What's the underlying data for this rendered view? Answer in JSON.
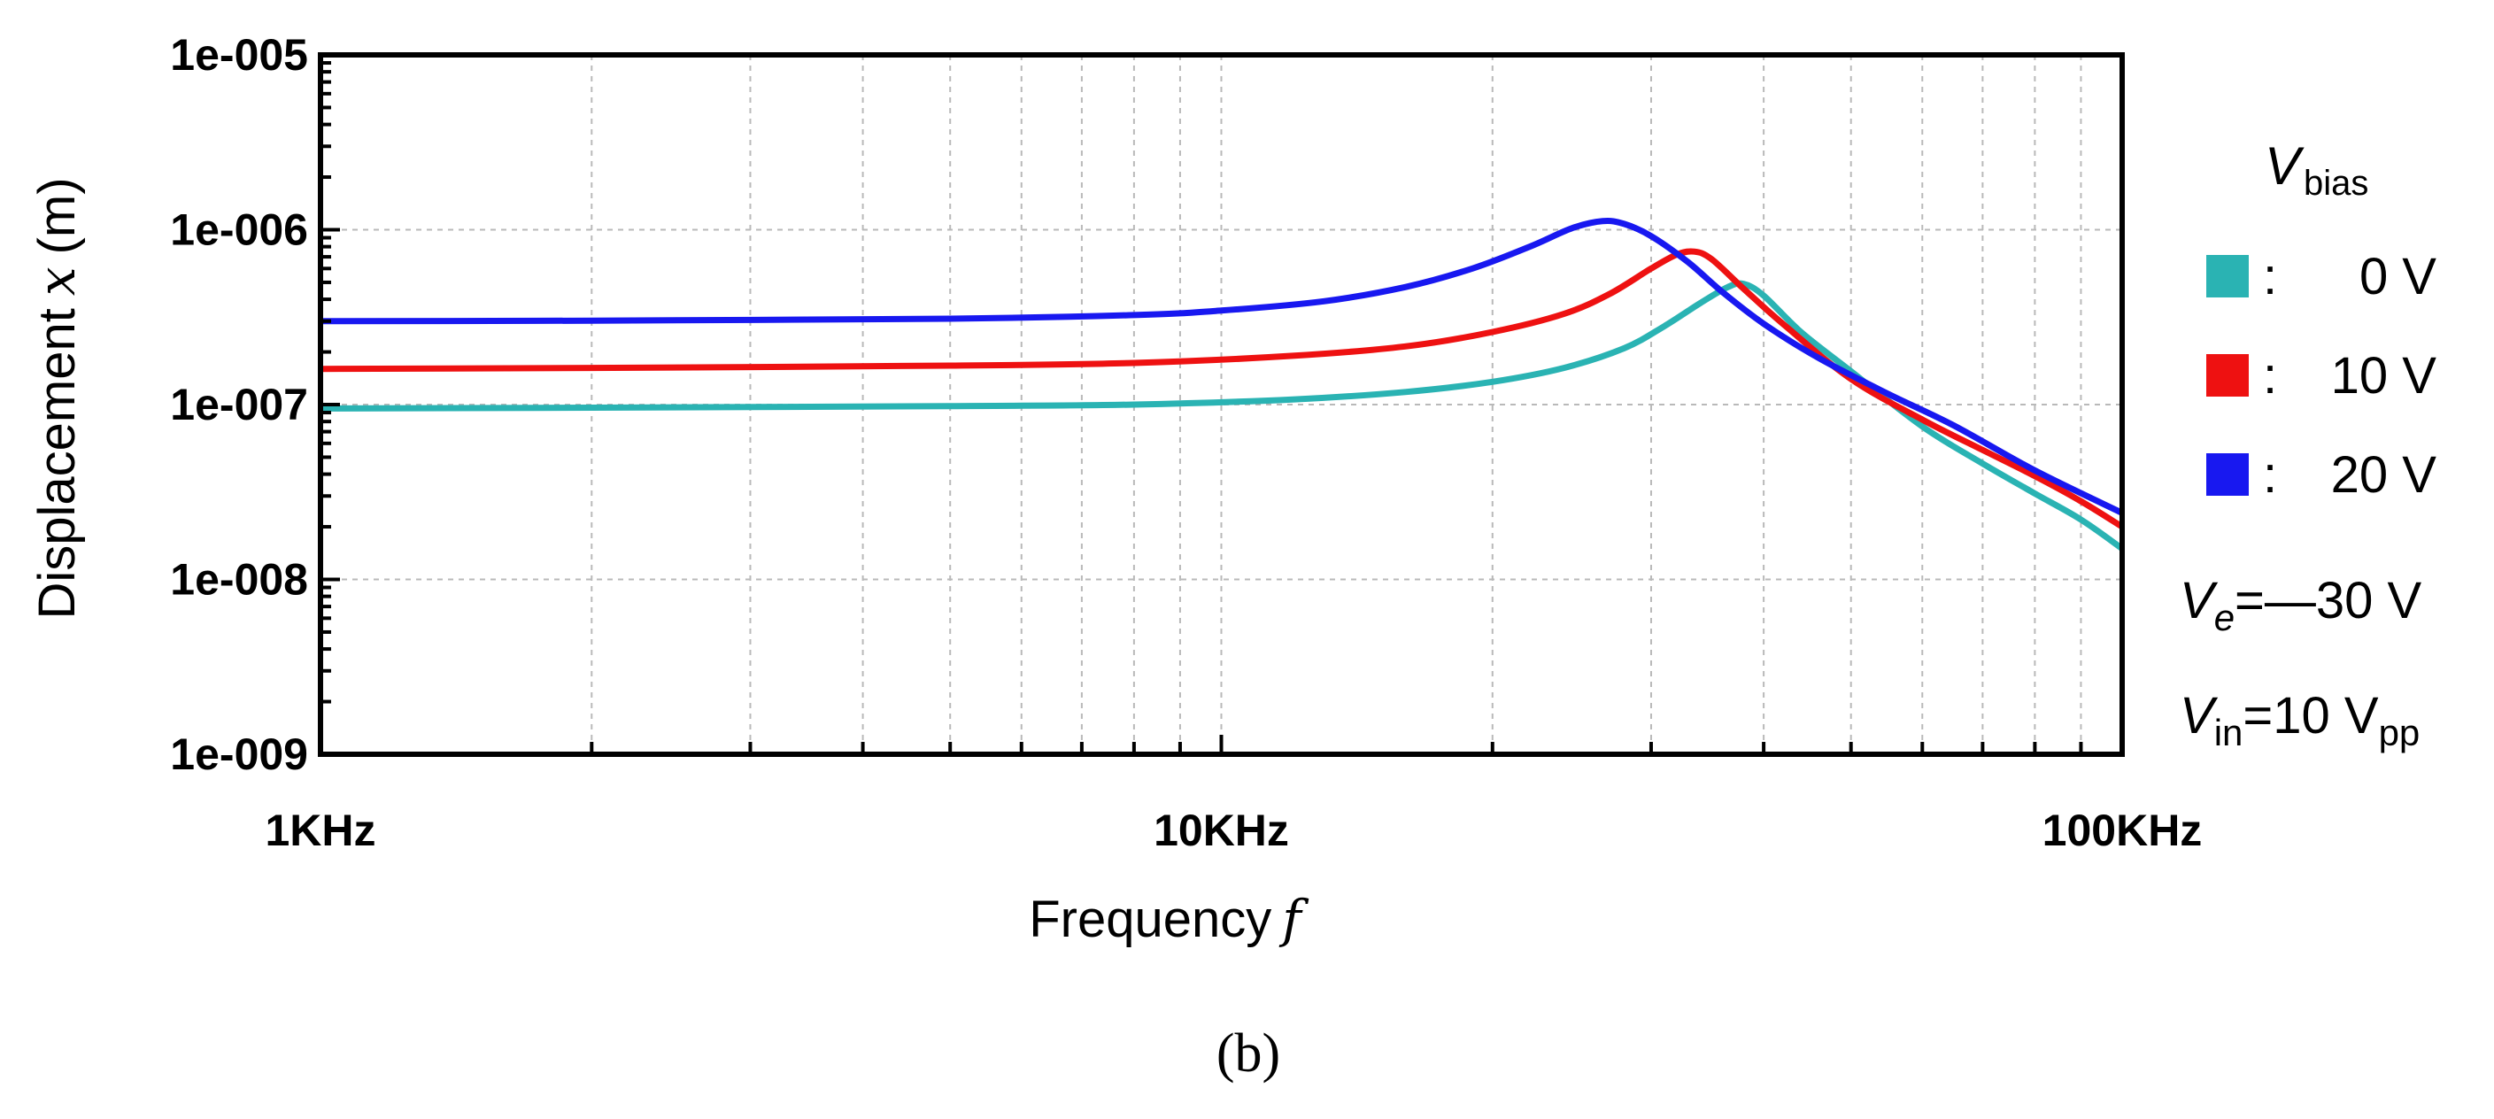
{
  "chart_data": {
    "type": "line",
    "title": "",
    "xlabel": "Frequency",
    "xlabel_var": "f",
    "ylabel": "Displacement",
    "ylabel_var": "x",
    "ylabel_unit": "(m)",
    "x_scale": "log",
    "y_scale": "log",
    "xlim": [
      1000,
      100000
    ],
    "ylim": [
      1e-09,
      1e-05
    ],
    "grid": true,
    "x_ticks": [
      {
        "value": 1000,
        "label": "1KHz"
      },
      {
        "value": 10000,
        "label": "10KHz"
      },
      {
        "value": 100000,
        "label": "100KHz"
      }
    ],
    "y_ticks": [
      {
        "value": 1e-05,
        "label": "1e-005"
      },
      {
        "value": 1e-06,
        "label": "1e-006"
      },
      {
        "value": 1e-07,
        "label": "1e-007"
      },
      {
        "value": 1e-08,
        "label": "1e-008"
      },
      {
        "value": 1e-09,
        "label": "1e-009"
      }
    ],
    "series": [
      {
        "name": "0 V",
        "color": "#2ab3b3",
        "x": [
          1000,
          2000,
          5000,
          8000,
          12000,
          16000,
          20000,
          24000,
          28000,
          31000,
          34000,
          36500,
          38000,
          40000,
          44000,
          50000,
          60000,
          70000,
          80000,
          90000,
          100000
        ],
        "y": [
          9.5e-08,
          9.6e-08,
          9.8e-08,
          1e-07,
          1.07e-07,
          1.18e-07,
          1.35e-07,
          1.62e-07,
          2.1e-07,
          2.8e-07,
          3.8e-07,
          4.7e-07,
          4.9e-07,
          4.2e-07,
          2.6e-07,
          1.55e-07,
          7.5e-08,
          4.6e-08,
          3.1e-08,
          2.2e-08,
          1.5e-08
        ]
      },
      {
        "name": "10 V",
        "color": "#ee1111",
        "x": [
          1000,
          2000,
          5000,
          8000,
          12000,
          16000,
          20000,
          24000,
          27000,
          30000,
          32000,
          33500,
          35000,
          38000,
          42000,
          50000,
          60000,
          70000,
          80000,
          90000,
          100000
        ],
        "y": [
          1.6e-07,
          1.62e-07,
          1.67e-07,
          1.73e-07,
          1.9e-07,
          2.15e-07,
          2.6e-07,
          3.3e-07,
          4.3e-07,
          6e-07,
          7.2e-07,
          7.5e-07,
          6.8e-07,
          4.6e-07,
          2.9e-07,
          1.4e-07,
          8.2e-08,
          5.5e-08,
          3.9e-08,
          2.8e-08,
          2e-08
        ]
      },
      {
        "name": "20 V",
        "color": "#1818f0",
        "x": [
          1000,
          2000,
          5000,
          8000,
          10000,
          13000,
          16000,
          19000,
          22000,
          24500,
          26500,
          28000,
          30000,
          33000,
          36000,
          40000,
          46000,
          55000,
          65000,
          80000,
          100000
        ],
        "y": [
          3e-07,
          3.02e-07,
          3.1e-07,
          3.25e-07,
          3.45e-07,
          3.9e-07,
          4.7e-07,
          6e-07,
          8e-07,
          1.02e-06,
          1.12e-06,
          1.08e-06,
          9.2e-07,
          6.5e-07,
          4.4e-07,
          2.9e-07,
          1.85e-07,
          1.15e-07,
          7.6e-08,
          4.2e-08,
          2.4e-08
        ]
      }
    ],
    "legend": {
      "title_main": "V",
      "title_sub": "bias",
      "placement": "right",
      "entries": [
        {
          "marker": ":",
          "label": "0 V",
          "color": "#2ab3b3"
        },
        {
          "marker": ":",
          "label": "10 V",
          "color": "#ee1111"
        },
        {
          "marker": ":",
          "label": "20 V",
          "color": "#1818f0"
        }
      ]
    },
    "annotations": {
      "ve_main": "V",
      "ve_sub": "e",
      "ve_value": "=—30 V",
      "vin_main": "V",
      "vin_sub": "in",
      "vin_value": "=10 V",
      "vin_unit_sub": "pp"
    },
    "caption": "(b)"
  }
}
